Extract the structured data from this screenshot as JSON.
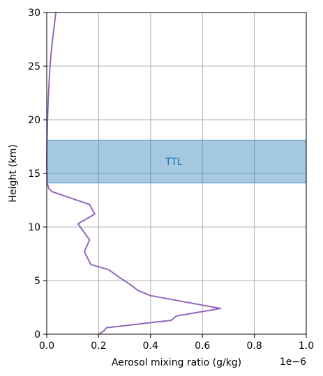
{
  "chart_data": {
    "type": "line",
    "xlabel": "Aerosol mixing ratio (g/kg)",
    "ylabel": "Height (km)",
    "x_scale_label": "1e−6",
    "xlim": [
      0,
      1e-06
    ],
    "ylim": [
      0,
      30
    ],
    "xticks": [
      0,
      2e-07,
      4e-07,
      6e-07,
      8e-07,
      1e-06
    ],
    "xtick_labels": [
      "0.0",
      "0.2",
      "0.4",
      "0.6",
      "0.8",
      "1.0"
    ],
    "yticks": [
      0,
      5,
      10,
      15,
      20,
      25,
      30
    ],
    "ytick_labels": [
      "0",
      "5",
      "10",
      "15",
      "20",
      "25",
      "30"
    ],
    "grid": true,
    "line_color": "#9467bd",
    "band": {
      "y_start": 14.1,
      "y_end": 18.1,
      "label": "TTL",
      "fill_color": "#1f77b4",
      "label_color": "#1f77b4"
    },
    "series": [
      {
        "x": [
          2e-07,
          2.2e-07,
          2.3e-07,
          4.8e-07,
          5e-07,
          6.7e-07,
          4e-07,
          3.5e-07,
          3.3e-07,
          2.8e-07,
          2.4e-07,
          1.7e-07,
          1.45e-07,
          1.65e-07,
          1.2e-07,
          1.85e-07,
          1.65e-07,
          2e-08,
          8e-09,
          2e-09,
          0.0,
          1e-09,
          3e-09,
          6e-09,
          1.2e-08,
          2e-08,
          3.5e-08
        ],
        "y": [
          0.0,
          0.3,
          0.6,
          1.3,
          1.7,
          2.4,
          3.6,
          4.1,
          4.5,
          5.3,
          6.0,
          6.5,
          7.7,
          8.8,
          10.3,
          11.2,
          12.1,
          13.3,
          13.6,
          14.1,
          16.0,
          18.0,
          20.0,
          22.0,
          24.8,
          27.0,
          30.0
        ]
      }
    ]
  }
}
